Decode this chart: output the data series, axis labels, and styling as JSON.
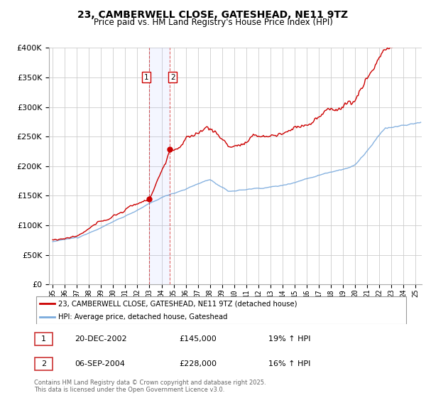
{
  "title": "23, CAMBERWELL CLOSE, GATESHEAD, NE11 9TZ",
  "subtitle": "Price paid vs. HM Land Registry's House Price Index (HPI)",
  "ylim": [
    0,
    400000
  ],
  "xlim_start": 1994.7,
  "xlim_end": 2025.5,
  "red_line_label": "23, CAMBERWELL CLOSE, GATESHEAD, NE11 9TZ (detached house)",
  "blue_line_label": "HPI: Average price, detached house, Gateshead",
  "sale1_date": "20-DEC-2002",
  "sale1_price": "£145,000",
  "sale1_hpi": "19% ↑ HPI",
  "sale1_x": 2002.97,
  "sale1_y": 145000,
  "sale2_date": "06-SEP-2004",
  "sale2_price": "£228,000",
  "sale2_hpi": "16% ↑ HPI",
  "sale2_x": 2004.68,
  "sale2_y": 228000,
  "footnote": "Contains HM Land Registry data © Crown copyright and database right 2025.\nThis data is licensed under the Open Government Licence v3.0.",
  "background_color": "#ffffff",
  "grid_color": "#cccccc",
  "red_color": "#cc0000",
  "blue_color": "#7aaadd"
}
